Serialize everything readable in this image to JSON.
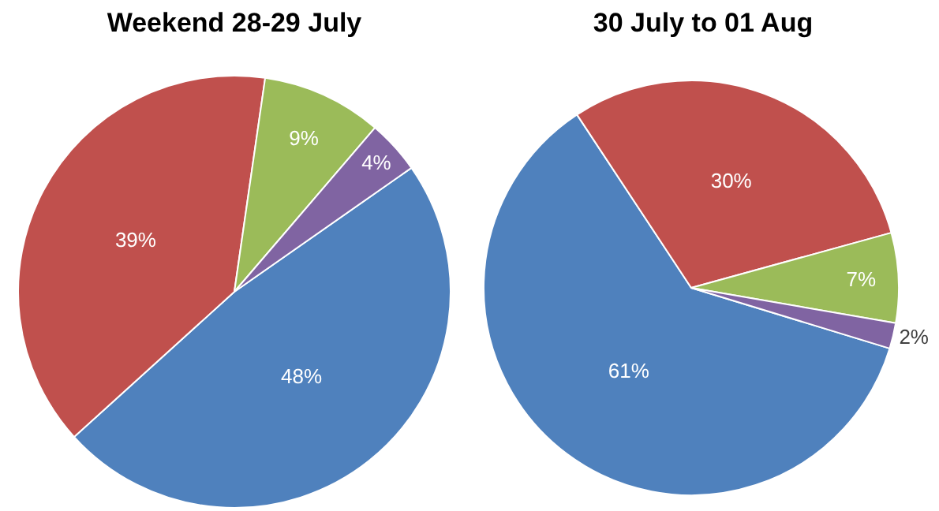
{
  "chart_data": [
    {
      "type": "pie",
      "title": "Weekend 28-29 July",
      "categories": [
        null,
        null,
        null,
        null
      ],
      "values": [
        48,
        39,
        9,
        4
      ],
      "value_labels": [
        "48%",
        "39%",
        "9%",
        "4%"
      ],
      "colors": [
        "#4f81bd",
        "#c0504d",
        "#9bbb59",
        "#8064a2"
      ],
      "legend": false
    },
    {
      "type": "pie",
      "title": "30 July to 01 Aug",
      "categories": [
        null,
        null,
        null,
        null
      ],
      "values": [
        61,
        30,
        7,
        2
      ],
      "value_labels": [
        "61%",
        "30%",
        "7%",
        "2%"
      ],
      "colors": [
        "#4f81bd",
        "#c0504d",
        "#9bbb59",
        "#8064a2"
      ],
      "legend": false
    }
  ]
}
